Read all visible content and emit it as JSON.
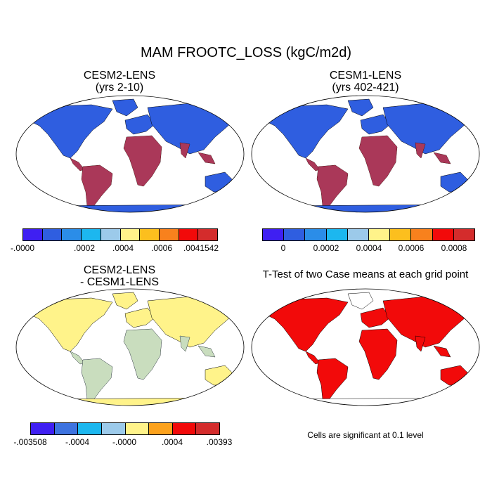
{
  "figure": {
    "title": "MAM FROOTC_LOSS (kgC/m2d)"
  },
  "panels": {
    "p1": {
      "title_line1": "CESM2-LENS",
      "title_line2": "(yrs 2-10)"
    },
    "p2": {
      "title_line1": "CESM1-LENS",
      "title_line2": "(yrs 402-421)"
    },
    "p3": {
      "title_line1": "CESM2-LENS",
      "title_line2": "- CESM1-LENS"
    },
    "p4": {
      "title_line1": "T-Test of two Case means at each grid point",
      "note": "Cells are significant at 0.1 level"
    }
  },
  "colorbars": {
    "cb1": {
      "colors": [
        "#3f1ff2",
        "#2f5ee0",
        "#2b8de8",
        "#1cb7ef",
        "#9ccaea",
        "#fff38a",
        "#fcbf1e",
        "#f8811d",
        "#f20a0a",
        "#d42c2c"
      ],
      "labels": [
        ".0000",
        ".0002",
        ".0004",
        ".0006",
        ".0041542"
      ],
      "label_prefix_first": "-"
    },
    "cb2": {
      "colors": [
        "#3f1ff2",
        "#2f5ee0",
        "#2b8de8",
        "#1cb7ef",
        "#9ccaea",
        "#fff38a",
        "#fcbf1e",
        "#f8811d",
        "#f20a0a",
        "#d42c2c"
      ],
      "labels": [
        "0",
        "0.0002",
        "0.0004",
        "0.0006",
        "0.0008"
      ]
    },
    "cb3": {
      "colors": [
        "#3f1ff2",
        "#3d73e0",
        "#1cb7ef",
        "#9ccaea",
        "#fff38a",
        "#fca21d",
        "#f20a0a",
        "#d42c2c"
      ],
      "labels": [
        "-.003508",
        "-.0004",
        "-.0000",
        ".0004",
        ".00393"
      ]
    }
  },
  "colors": {
    "land_low": "#2f5ee0",
    "land_mid": "#9ccaea",
    "land_high": "#f20a0a",
    "tropics_hot": "#d42c2c",
    "diff_base": "#fff38a",
    "ttest_sig": "#f20a0a",
    "ocean": "#ffffff"
  }
}
